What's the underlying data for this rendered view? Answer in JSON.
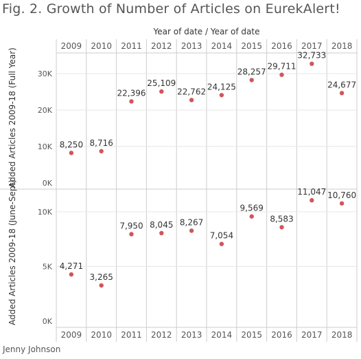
{
  "title": "Fig. 2. Growth of Number of Articles on EurekAlert!",
  "credit": "Jenny Johnson",
  "colors": {
    "point": "#d1555d",
    "grid": "#e6e6e6",
    "border": "#cccccc",
    "text": "#333333",
    "axis_text": "#555555"
  },
  "chart_data": {
    "type": "scatter",
    "column_header": "Year of date  /  Year of date",
    "categories": [
      "2009",
      "2010",
      "2011",
      "2012",
      "2013",
      "2014",
      "2015",
      "2016",
      "2017",
      "2018"
    ],
    "panels": [
      {
        "ylabel": "Added Articles 2009-18 (Full Year)",
        "ylim": [
          0,
          34000
        ],
        "ticks": [
          {
            "value": 0,
            "label": "0K"
          },
          {
            "value": 10000,
            "label": "10K"
          },
          {
            "value": 20000,
            "label": "20K"
          },
          {
            "value": 30000,
            "label": "30K"
          }
        ],
        "values": [
          8250,
          8716,
          22396,
          25109,
          22762,
          24125,
          28257,
          29711,
          32733,
          24677
        ],
        "labels": [
          "8,250",
          "8,716",
          "22,396",
          "25,109",
          "22,762",
          "24,125",
          "28,257",
          "29,711",
          "32,733",
          "24,677"
        ]
      },
      {
        "ylabel": "Added Articles 2009-18 (June-Sept)",
        "ylim": [
          0,
          11500
        ],
        "ticks": [
          {
            "value": 0,
            "label": "0K"
          },
          {
            "value": 5000,
            "label": "5K"
          },
          {
            "value": 10000,
            "label": "10K"
          }
        ],
        "values": [
          4271,
          3265,
          7950,
          8045,
          8267,
          7054,
          9569,
          8583,
          11047,
          10760
        ],
        "labels": [
          "4,271",
          "3,265",
          "7,950",
          "8,045",
          "8,267",
          "7,054",
          "9,569",
          "8,583",
          "11,047",
          "10,760"
        ]
      }
    ]
  }
}
